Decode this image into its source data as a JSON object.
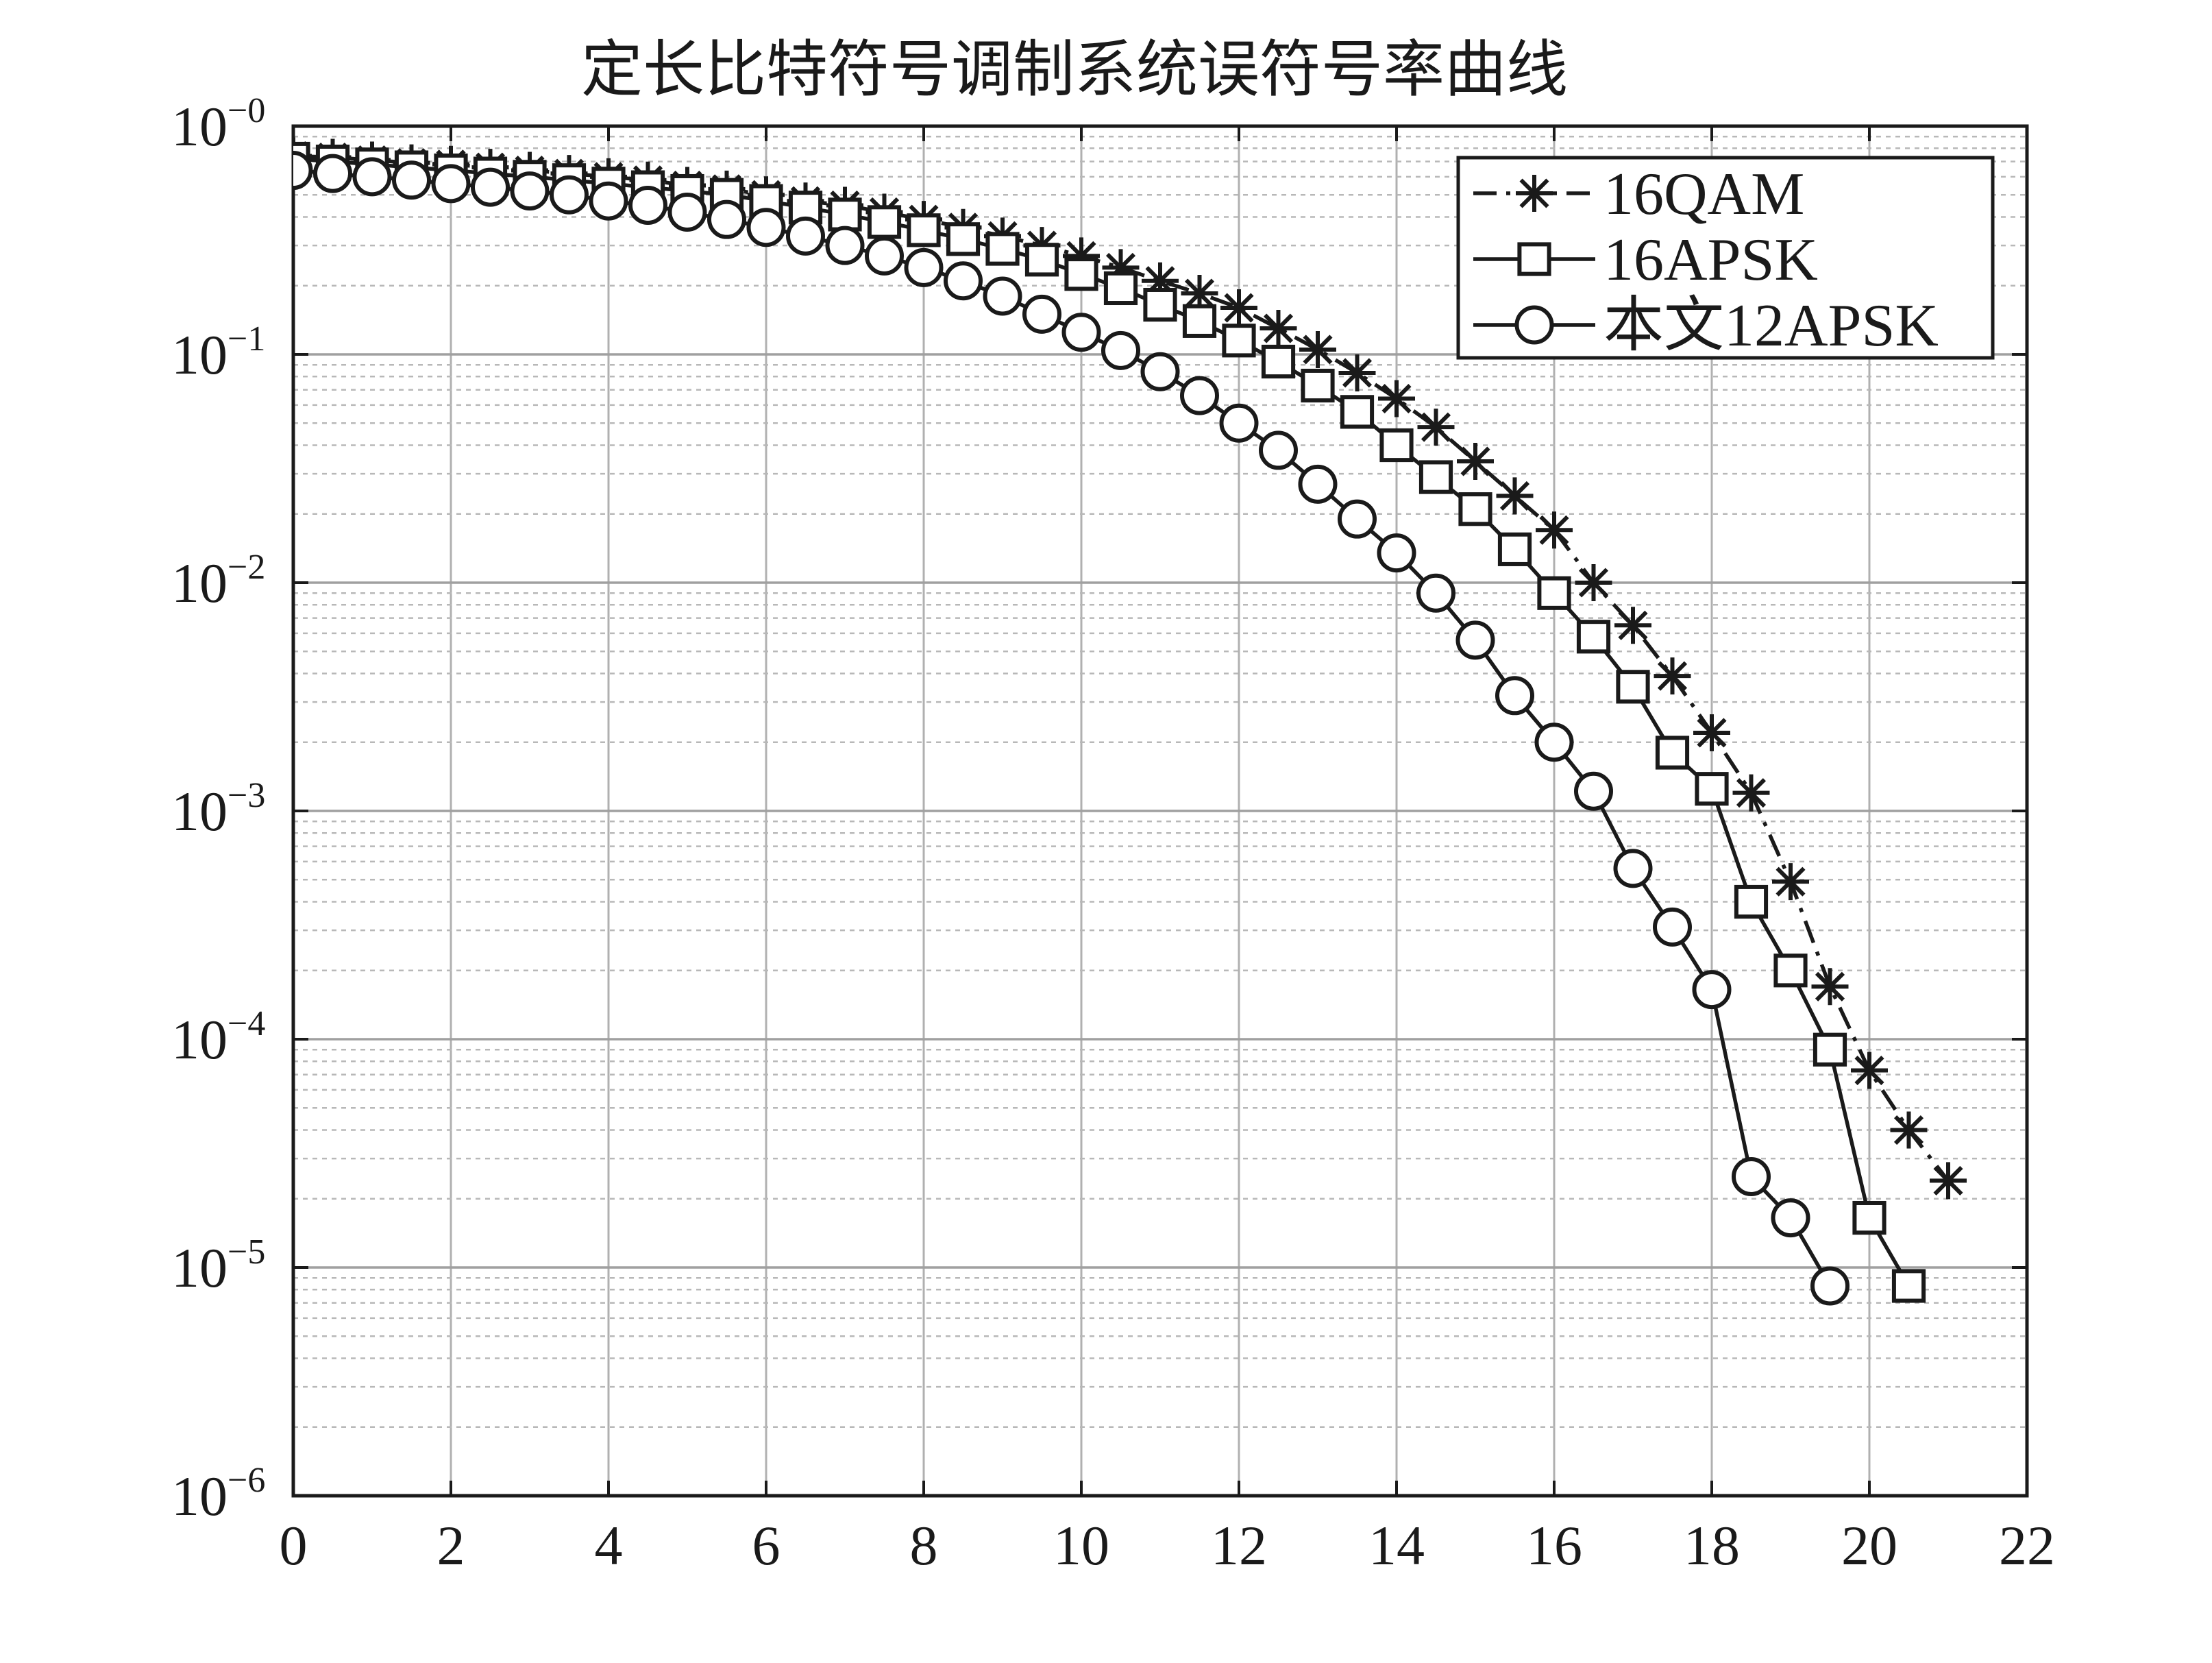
{
  "chart_data": {
    "type": "line",
    "title": "定长比特符号调制系统误符号率曲线",
    "xlabel": "",
    "ylabel": "",
    "x_scale": "linear",
    "y_scale": "log",
    "xlim": [
      0,
      22
    ],
    "ylim": [
      1e-06,
      1
    ],
    "grid": true,
    "legend_position": "top-right",
    "x_ticks": [
      0,
      2,
      4,
      6,
      8,
      10,
      12,
      14,
      16,
      18,
      20,
      22
    ],
    "x_tick_labels": [
      "0",
      "2",
      "4",
      "6",
      "8",
      "10",
      "12",
      "14",
      "16",
      "18",
      "20",
      "22"
    ],
    "y_ticks": [
      1,
      0.1,
      0.01,
      0.001,
      0.0001,
      1e-05,
      1e-06
    ],
    "y_tick_labels": [
      {
        "base": "10",
        "exp": "−0"
      },
      {
        "base": "10",
        "exp": "−1"
      },
      {
        "base": "10",
        "exp": "−2"
      },
      {
        "base": "10",
        "exp": "−3"
      },
      {
        "base": "10",
        "exp": "−4"
      },
      {
        "base": "10",
        "exp": "−5"
      },
      {
        "base": "10",
        "exp": "−6"
      }
    ],
    "series": [
      {
        "name": "16QAM",
        "marker": "star",
        "line": "dashdot",
        "color": "#1a1a1a",
        "x": [
          0,
          0.5,
          1,
          1.5,
          2,
          2.5,
          3,
          3.5,
          4,
          4.5,
          5,
          5.5,
          6,
          6.5,
          7,
          7.5,
          8,
          8.5,
          9,
          9.5,
          10,
          10.5,
          11,
          11.5,
          12,
          12.5,
          13,
          13.5,
          14,
          14.5,
          15,
          15.5,
          16,
          16.5,
          17,
          17.5,
          18,
          18.5,
          19,
          19.5,
          20,
          20.5,
          21
        ],
        "y": [
          0.74,
          0.73,
          0.71,
          0.69,
          0.68,
          0.66,
          0.64,
          0.62,
          0.6,
          0.58,
          0.55,
          0.53,
          0.5,
          0.47,
          0.45,
          0.42,
          0.39,
          0.36,
          0.33,
          0.3,
          0.27,
          0.24,
          0.21,
          0.185,
          0.16,
          0.13,
          0.105,
          0.083,
          0.064,
          0.048,
          0.034,
          0.024,
          0.017,
          0.01,
          0.0065,
          0.0039,
          0.0022,
          0.0012,
          0.00049,
          0.00017,
          7.3e-05,
          4e-05,
          2.4e-05
        ]
      },
      {
        "name": "16APSK",
        "marker": "square",
        "line": "solid",
        "color": "#1a1a1a",
        "x": [
          0,
          0.5,
          1,
          1.5,
          2,
          2.5,
          3,
          3.5,
          4,
          4.5,
          5,
          5.5,
          6,
          6.5,
          7,
          7.5,
          8,
          8.5,
          9,
          9.5,
          10,
          10.5,
          11,
          11.5,
          12,
          12.5,
          13,
          13.5,
          14,
          14.5,
          15,
          15.5,
          16,
          16.5,
          17,
          17.5,
          18,
          18.5,
          19,
          19.5,
          20,
          20.5
        ],
        "y": [
          0.72,
          0.7,
          0.68,
          0.66,
          0.64,
          0.62,
          0.6,
          0.58,
          0.56,
          0.54,
          0.52,
          0.5,
          0.47,
          0.44,
          0.41,
          0.38,
          0.35,
          0.32,
          0.29,
          0.26,
          0.225,
          0.195,
          0.165,
          0.14,
          0.115,
          0.093,
          0.073,
          0.056,
          0.04,
          0.029,
          0.021,
          0.014,
          0.009,
          0.0058,
          0.0035,
          0.0018,
          0.00125,
          0.0004,
          0.0002,
          9e-05,
          1.65e-05,
          8.3e-06
        ]
      },
      {
        "name": "本文12APSK",
        "marker": "circle",
        "line": "solid",
        "color": "#1a1a1a",
        "x": [
          0,
          0.5,
          1,
          1.5,
          2,
          2.5,
          3,
          3.5,
          4,
          4.5,
          5,
          5.5,
          6,
          6.5,
          7,
          7.5,
          8,
          8.5,
          9,
          9.5,
          10,
          10.5,
          11,
          11.5,
          12,
          12.5,
          13,
          13.5,
          14,
          14.5,
          15,
          15.5,
          16,
          16.5,
          17,
          17.5,
          18,
          18.5,
          19,
          19.5
        ],
        "y": [
          0.64,
          0.62,
          0.6,
          0.58,
          0.56,
          0.54,
          0.52,
          0.5,
          0.47,
          0.45,
          0.42,
          0.39,
          0.36,
          0.33,
          0.3,
          0.27,
          0.24,
          0.21,
          0.18,
          0.15,
          0.125,
          0.104,
          0.084,
          0.066,
          0.05,
          0.038,
          0.027,
          0.019,
          0.0135,
          0.009,
          0.0056,
          0.0032,
          0.002,
          0.00122,
          0.00056,
          0.00031,
          0.000165,
          2.5e-05,
          1.65e-05,
          8.3e-06
        ]
      }
    ]
  }
}
